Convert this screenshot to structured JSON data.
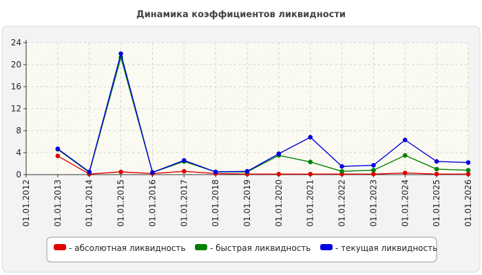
{
  "chart_data": {
    "type": "line",
    "title": "Динамика коэффициентов ликвидности",
    "x": [
      "01.01.2012",
      "01.01.2013",
      "01.01.2014",
      "01.01.2015",
      "01.01.2016",
      "01.01.2017",
      "01.01.2018",
      "01.01.2019",
      "01.01.2020",
      "01.01.2021",
      "01.01.2022",
      "01.01.2023",
      "01.01.2024",
      "01.01.2025",
      "01.01.2026"
    ],
    "yticks": [
      0,
      4,
      8,
      12,
      16,
      20,
      24
    ],
    "ylim": [
      0,
      24
    ],
    "grid": true,
    "legend_position": "bottom",
    "series": [
      {
        "name": "абсолютная ликвидность",
        "color": "#e00000",
        "values": [
          null,
          3.4,
          0.1,
          0.5,
          0.2,
          0.6,
          0.2,
          0.1,
          0.1,
          0.1,
          0.1,
          0.1,
          0.3,
          0.1,
          0.1
        ]
      },
      {
        "name": "быстрая ликвидность",
        "color": "#008000",
        "values": [
          null,
          4.6,
          0.4,
          21.3,
          0.4,
          2.4,
          0.5,
          0.5,
          3.5,
          2.3,
          0.6,
          0.8,
          3.5,
          1.0,
          0.8
        ]
      },
      {
        "name": "текущая ликвидность",
        "color": "#0000e0",
        "values": [
          null,
          4.7,
          0.5,
          22.0,
          0.4,
          2.6,
          0.5,
          0.6,
          3.8,
          6.8,
          1.5,
          1.7,
          6.3,
          2.4,
          2.2
        ]
      }
    ]
  }
}
